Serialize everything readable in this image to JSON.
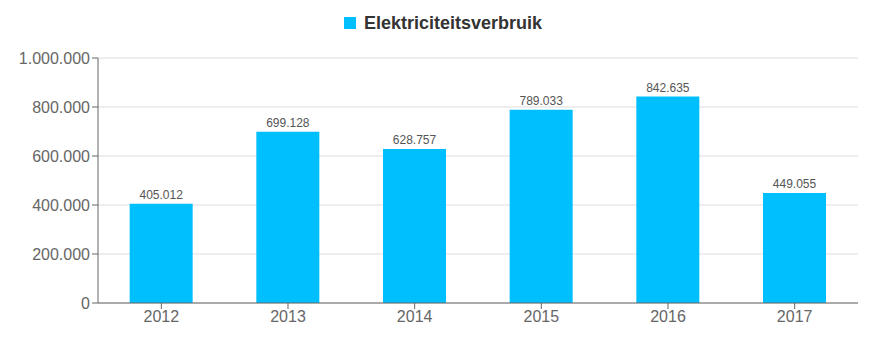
{
  "chart_data": {
    "type": "bar",
    "title": "Elektriciteitsverbruik",
    "categories": [
      "2012",
      "2013",
      "2014",
      "2015",
      "2016",
      "2017"
    ],
    "values": [
      405012,
      699128,
      628757,
      789033,
      842635,
      449055
    ],
    "value_labels": [
      "405.012",
      "699.128",
      "628.757",
      "789.033",
      "842.635",
      "449.055"
    ],
    "data_labels": true,
    "color": "#00BFFF",
    "ylim": [
      0,
      1000000
    ],
    "yticks": [
      0,
      {
        "value": 200000,
        "label": "200.000"
      },
      {
        "value": 400000,
        "label": "400.000"
      },
      {
        "value": 600000,
        "label": "600.000"
      },
      {
        "value": 800000,
        "label": "800.000"
      },
      {
        "value": 1000000,
        "label": "1.000.000"
      }
    ],
    "grid": true
  }
}
